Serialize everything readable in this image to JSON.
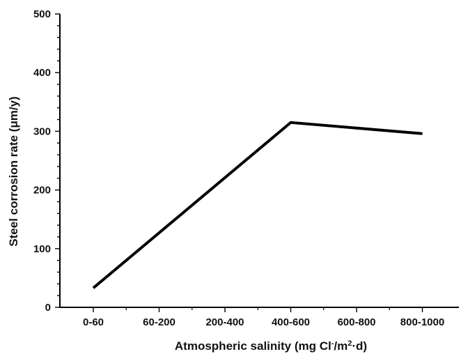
{
  "chart_data": {
    "type": "line",
    "title": "",
    "xlabel": {
      "prefix": "Atmospheric salinity (mg Cl",
      "sup1": "-",
      "middle": "/m",
      "sup2": "2",
      "suffix": "·d)"
    },
    "ylabel": "Steel corrosion rate (μm/y)",
    "categories": [
      "0-60",
      "60-200",
      "200-400",
      "400-600",
      "600-800",
      "800-1000"
    ],
    "ylim": [
      0,
      500
    ],
    "yticks": [
      0,
      100,
      200,
      300,
      400,
      500
    ],
    "series": [
      {
        "points": [
          {
            "x": "0-60",
            "y": 33
          },
          {
            "x": "400-600",
            "y": 315
          },
          {
            "x": "800-1000",
            "y": 296
          }
        ],
        "color": "#000000"
      }
    ],
    "grid": false,
    "legend": "none"
  }
}
